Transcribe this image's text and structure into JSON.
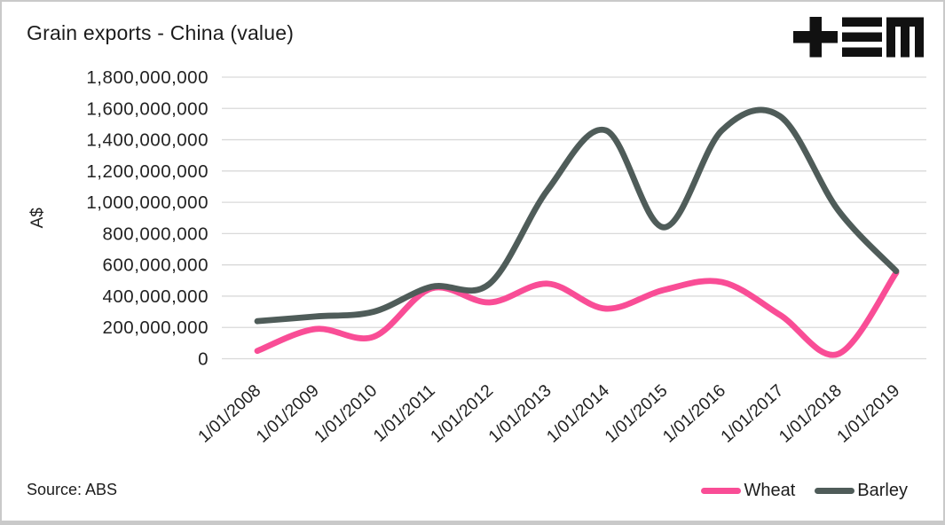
{
  "header": {
    "title": "Grain exports - China (value)",
    "logo_icon": "tem-logo"
  },
  "footer": {
    "source": "Source: ABS"
  },
  "chart_data": {
    "type": "line",
    "title": "Grain exports - China (value)",
    "ylabel": "A$",
    "xlabel": "",
    "x_tick_labels": [
      "1/01/2008",
      "1/01/2009",
      "1/01/2010",
      "1/01/2011",
      "1/01/2012",
      "1/01/2013",
      "1/01/2014",
      "1/01/2015",
      "1/01/2016",
      "1/01/2017",
      "1/01/2018",
      "1/01/2019"
    ],
    "y_ticks": [
      0,
      200000000,
      400000000,
      600000000,
      800000000,
      1000000000,
      1200000000,
      1400000000,
      1600000000,
      1800000000
    ],
    "y_tick_labels": [
      "0",
      "200,000,000",
      "400,000,000",
      "600,000,000",
      "800,000,000",
      "1,000,000,000",
      "1,200,000,000",
      "1,400,000,000",
      "1,600,000,000",
      "1,800,000,000"
    ],
    "ylim": [
      0,
      1800000000
    ],
    "grid": "horizontal-only",
    "line_style": "smooth",
    "legend_position": "bottom-right",
    "series": [
      {
        "name": "Wheat",
        "color": "#f94d96",
        "values": [
          50000000,
          190000000,
          140000000,
          450000000,
          360000000,
          480000000,
          320000000,
          440000000,
          490000000,
          280000000,
          30000000,
          550000000
        ]
      },
      {
        "name": "Barley",
        "color": "#4f5c59",
        "values": [
          240000000,
          270000000,
          300000000,
          460000000,
          480000000,
          1080000000,
          1460000000,
          840000000,
          1460000000,
          1550000000,
          950000000,
          560000000
        ]
      }
    ],
    "gridline_color": "#d9d9d9",
    "text_color": "#222222"
  }
}
